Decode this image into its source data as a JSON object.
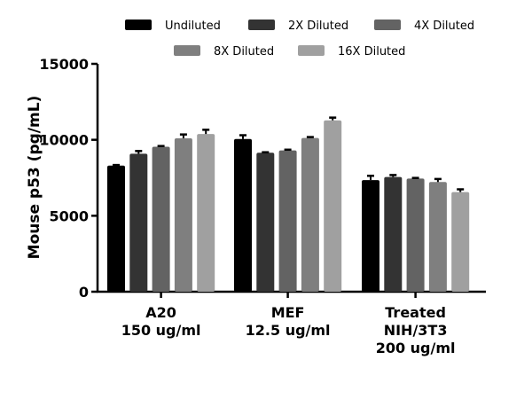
{
  "chart_data": {
    "type": "bar",
    "ylabel": "Mouse p53 (pg/mL)",
    "xlabel": "",
    "ylim": [
      0,
      15000
    ],
    "yticks": [
      0,
      5000,
      10000,
      15000
    ],
    "grid": false,
    "legend_position": "top",
    "categories": [
      [
        "A20",
        "150 ug/ml"
      ],
      [
        "MEF",
        "12.5 ug/ml"
      ],
      [
        "Treated",
        "NIH/3T3",
        "200 ug/ml"
      ]
    ],
    "series": [
      {
        "name": "Undiluted",
        "color": "#000000",
        "values": [
          8300,
          10050,
          7350
        ],
        "errors": [
          40,
          250,
          280
        ]
      },
      {
        "name": "2X Diluted",
        "color": "#333333",
        "values": [
          9080,
          9150,
          7550
        ],
        "errors": [
          180,
          30,
          130
        ]
      },
      {
        "name": "4X Diluted",
        "color": "#636363",
        "values": [
          9540,
          9300,
          7450
        ],
        "errors": [
          50,
          50,
          40
        ]
      },
      {
        "name": "8X Diluted",
        "color": "#7f7f7f",
        "values": [
          10100,
          10120,
          7220
        ],
        "errors": [
          250,
          60,
          200
        ]
      },
      {
        "name": "16X Diluted",
        "color": "#a0a0a0",
        "values": [
          10380,
          11280,
          6560
        ],
        "errors": [
          280,
          180,
          180
        ]
      }
    ]
  }
}
